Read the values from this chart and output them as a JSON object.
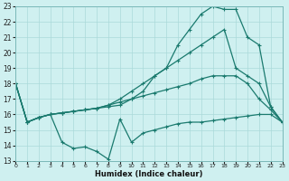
{
  "xlabel": "Humidex (Indice chaleur)",
  "bg_color": "#cff0f0",
  "grid_color": "#aadada",
  "line_color": "#1a7a6e",
  "xlim": [
    0,
    23
  ],
  "ylim": [
    13,
    23
  ],
  "xticks": [
    0,
    1,
    2,
    3,
    4,
    5,
    6,
    7,
    8,
    9,
    10,
    11,
    12,
    13,
    14,
    15,
    16,
    17,
    18,
    19,
    20,
    21,
    22,
    23
  ],
  "yticks": [
    13,
    14,
    15,
    16,
    17,
    18,
    19,
    20,
    21,
    22,
    23
  ],
  "lines": [
    {
      "x": [
        0,
        1,
        2,
        3,
        4,
        5,
        6,
        7,
        8,
        9,
        10,
        11,
        12,
        13,
        14,
        15,
        16,
        17,
        18,
        19,
        20,
        21,
        22,
        23
      ],
      "y": [
        18,
        15.5,
        15.8,
        16.0,
        16.1,
        16.2,
        16.3,
        16.4,
        16.5,
        16.6,
        17.0,
        17.5,
        18.5,
        19.0,
        20.5,
        21.5,
        22.5,
        23.0,
        22.8,
        22.8,
        21.0,
        20.5,
        16.5,
        15.5
      ]
    },
    {
      "x": [
        0,
        1,
        2,
        3,
        4,
        5,
        6,
        7,
        8,
        9,
        10,
        11,
        12,
        13,
        14,
        15,
        16,
        17,
        18,
        19,
        20,
        21,
        22,
        23
      ],
      "y": [
        18,
        15.5,
        15.8,
        16.0,
        16.1,
        16.2,
        16.3,
        16.4,
        16.6,
        17.0,
        17.5,
        18.0,
        18.5,
        19.0,
        19.5,
        20.0,
        20.5,
        21.0,
        21.5,
        19.0,
        18.5,
        18.0,
        16.5,
        15.5
      ]
    },
    {
      "x": [
        0,
        1,
        2,
        3,
        4,
        5,
        6,
        7,
        8,
        9,
        10,
        11,
        12,
        13,
        14,
        15,
        16,
        17,
        18,
        19,
        20,
        21,
        22,
        23
      ],
      "y": [
        18,
        15.5,
        15.8,
        16.0,
        16.1,
        16.2,
        16.3,
        16.4,
        16.6,
        16.8,
        17.0,
        17.2,
        17.4,
        17.6,
        17.8,
        18.0,
        18.3,
        18.5,
        18.5,
        18.5,
        18.0,
        17.0,
        16.3,
        15.5
      ]
    },
    {
      "x": [
        0,
        1,
        2,
        3,
        4,
        5,
        6,
        7,
        8,
        9,
        10,
        11,
        12,
        13,
        14,
        15,
        16,
        17,
        18,
        19,
        20,
        21,
        22,
        23
      ],
      "y": [
        18,
        15.5,
        15.8,
        16.0,
        14.2,
        13.8,
        13.9,
        13.6,
        13.1,
        15.7,
        14.2,
        14.8,
        15.0,
        15.2,
        15.4,
        15.5,
        15.5,
        15.6,
        15.7,
        15.8,
        15.9,
        16.0,
        16.0,
        15.5
      ]
    }
  ]
}
